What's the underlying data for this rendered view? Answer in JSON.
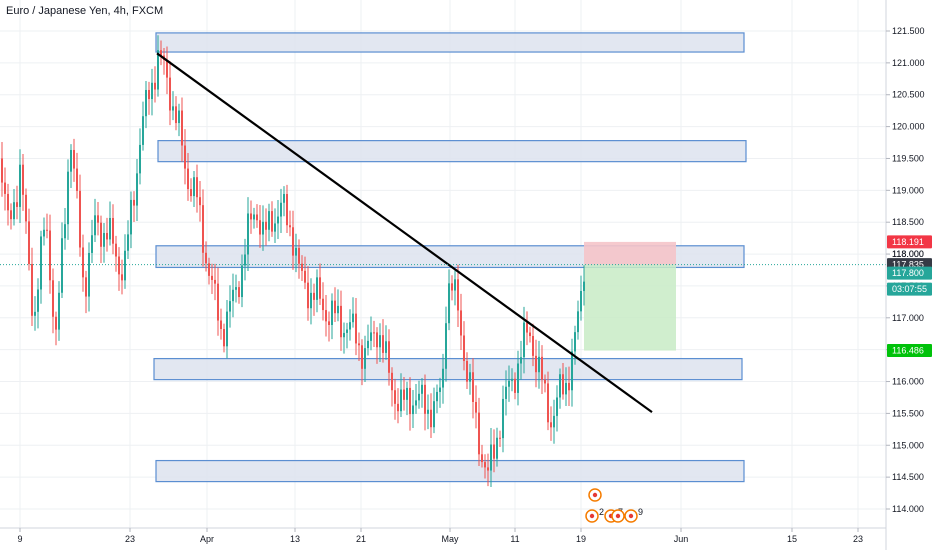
{
  "header": {
    "title": "Euro / Japanese Yen, 4h, FXCM"
  },
  "colors": {
    "up": "#26a69a",
    "down": "#ef5350",
    "zone_fill": "#dde3ef",
    "zone_stroke": "#5b8ed1",
    "trendline": "#000000",
    "stop_fill": "#f5c4c9",
    "target_fill": "#c8ebc5",
    "grid": "#eef0f3"
  },
  "chart_data": {
    "type": "candlestick",
    "title": "Euro / Japanese Yen, 4h, FXCM",
    "x_ticks": [
      "9",
      "23",
      "Apr",
      "13",
      "21",
      "May",
      "11",
      "19",
      "Jun",
      "15",
      "23"
    ],
    "y_ticks": [
      "121.500",
      "121.000",
      "120.500",
      "120.000",
      "119.500",
      "119.000",
      "118.500",
      "118.000",
      "117.500",
      "117.000",
      "116.500",
      "116.000",
      "115.500",
      "115.000",
      "114.500",
      "114.000"
    ],
    "ylim": [
      113.65,
      121.95
    ],
    "grid": true,
    "price_tags": [
      {
        "label": "118.191",
        "value": 118.191,
        "color": "#f23645"
      },
      {
        "label": "117.835",
        "value": 117.835,
        "color": "#363a45"
      },
      {
        "label": "117.800",
        "value": 117.7,
        "color": "#26a69a"
      },
      {
        "label": "03:07:55",
        "value": 117.45,
        "color": "#26a69a"
      },
      {
        "label": "116.486",
        "value": 116.486,
        "color": "#00c20a"
      }
    ],
    "zones": [
      {
        "low": 121.17,
        "high": 121.47
      },
      {
        "low": 119.45,
        "high": 119.78
      },
      {
        "low": 117.79,
        "high": 118.13
      },
      {
        "low": 116.03,
        "high": 116.36
      },
      {
        "low": 114.43,
        "high": 114.76
      }
    ],
    "trendline": {
      "start": 121.15,
      "end": 115.52
    },
    "position": {
      "entry": 117.835,
      "stop": 118.191,
      "target": 116.486
    },
    "event_markers": [
      "2",
      "7",
      "9"
    ]
  }
}
